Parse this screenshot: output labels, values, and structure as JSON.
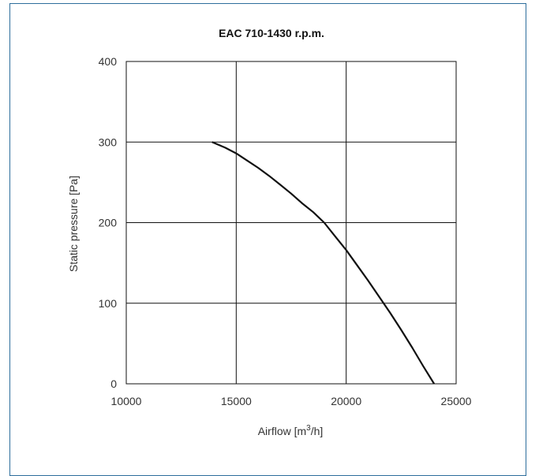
{
  "chart_data": {
    "type": "line",
    "title": "EAC 710-1430 r.p.m.",
    "xlabel_prefix": "Airflow [m",
    "xlabel_sup": "3",
    "xlabel_suffix": "/h]",
    "ylabel": "Static pressure [Pa]",
    "xlim": [
      10000,
      25000
    ],
    "ylim": [
      0,
      400
    ],
    "x_ticks": [
      "10000",
      "15000",
      "20000",
      "25000"
    ],
    "y_ticks": [
      "0",
      "100",
      "200",
      "300",
      "400"
    ],
    "grid": true,
    "series": [
      {
        "color": "#111111",
        "points": [
          [
            13900,
            300
          ],
          [
            14500,
            293
          ],
          [
            15000,
            286
          ],
          [
            15500,
            277
          ],
          [
            16000,
            268
          ],
          [
            16500,
            258
          ],
          [
            17000,
            247
          ],
          [
            17500,
            236
          ],
          [
            18000,
            224
          ],
          [
            18500,
            213
          ],
          [
            19000,
            200
          ],
          [
            19500,
            183
          ],
          [
            20000,
            166
          ],
          [
            20500,
            147
          ],
          [
            21000,
            128
          ],
          [
            21500,
            108
          ],
          [
            22000,
            88
          ],
          [
            22500,
            67
          ],
          [
            23000,
            45
          ],
          [
            23500,
            22
          ],
          [
            24000,
            0
          ]
        ]
      }
    ]
  }
}
